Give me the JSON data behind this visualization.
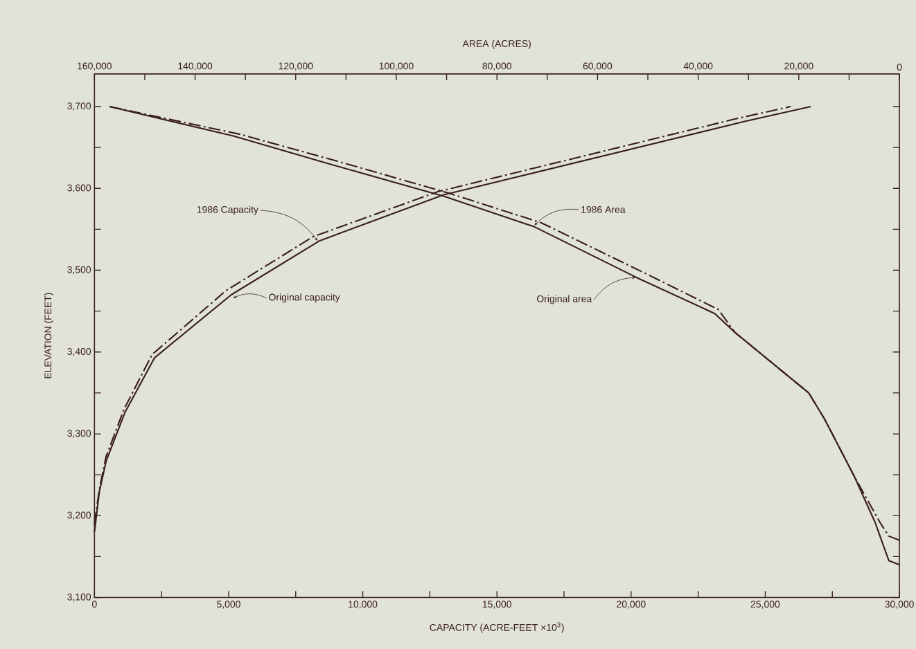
{
  "chart_data": {
    "type": "line",
    "xlabel": "CAPACITY (ACRE-FEET ×10$^{3}$)",
    "x2label": "AREA (ACRES)",
    "ylabel": "ELEVATION (FEET)",
    "xlim": [
      0,
      30000
    ],
    "x2lim": [
      160000,
      0
    ],
    "ylim": [
      3100,
      3740
    ],
    "xticks": [
      {
        "value": 0,
        "label": "0"
      },
      {
        "value": 2500,
        "label": null
      },
      {
        "value": 5000,
        "label": "5,000"
      },
      {
        "value": 7500,
        "label": null
      },
      {
        "value": 10000,
        "label": "10,000"
      },
      {
        "value": 12500,
        "label": null
      },
      {
        "value": 15000,
        "label": "15,000"
      },
      {
        "value": 17500,
        "label": null
      },
      {
        "value": 20000,
        "label": "20,000"
      },
      {
        "value": 22500,
        "label": null
      },
      {
        "value": 25000,
        "label": "25,000"
      },
      {
        "value": 27500,
        "label": null
      },
      {
        "value": 30000,
        "label": "30,000"
      }
    ],
    "x2ticks": [
      {
        "value": 160000,
        "label": "160,000"
      },
      {
        "value": 150000,
        "label": null
      },
      {
        "value": 140000,
        "label": "140,000"
      },
      {
        "value": 130000,
        "label": null
      },
      {
        "value": 120000,
        "label": "120,000"
      },
      {
        "value": 110000,
        "label": null
      },
      {
        "value": 100000,
        "label": "100,000"
      },
      {
        "value": 90000,
        "label": null
      },
      {
        "value": 80000,
        "label": "80,000"
      },
      {
        "value": 70000,
        "label": null
      },
      {
        "value": 60000,
        "label": "60,000"
      },
      {
        "value": 50000,
        "label": null
      },
      {
        "value": 40000,
        "label": "40,000"
      },
      {
        "value": 30000,
        "label": null
      },
      {
        "value": 20000,
        "label": "20,000"
      },
      {
        "value": 10000,
        "label": null
      },
      {
        "value": 0,
        "label": "0"
      }
    ],
    "yticks": [
      {
        "value": 3100,
        "label": "3,100"
      },
      {
        "value": 3150,
        "label": null
      },
      {
        "value": 3200,
        "label": "3,200"
      },
      {
        "value": 3250,
        "label": null
      },
      {
        "value": 3300,
        "label": "3,300"
      },
      {
        "value": 3350,
        "label": null
      },
      {
        "value": 3400,
        "label": "3,400"
      },
      {
        "value": 3450,
        "label": null
      },
      {
        "value": 3500,
        "label": "3,500"
      },
      {
        "value": 3550,
        "label": null
      },
      {
        "value": 3600,
        "label": "3,600"
      },
      {
        "value": 3650,
        "label": null
      },
      {
        "value": 3700,
        "label": "3,700"
      }
    ],
    "series": [
      {
        "color": "#3a1f1c",
        "line_style": "solid",
        "x": [
          0,
          180,
          438,
          1133,
          2240,
          5100,
          8395,
          13000,
          24257,
          26700
        ],
        "values": [
          3180,
          3229,
          3267,
          3326,
          3393,
          3470,
          3536,
          3592,
          3682,
          3700
        ]
      },
      {
        "color": "#3a1f1c",
        "line_style": "dashdot",
        "x": [
          0,
          180,
          430,
          1100,
          2150,
          4900,
          8150,
          12800,
          23900,
          25950
        ],
        "values": [
          3190,
          3232,
          3272,
          3330,
          3397,
          3475,
          3541,
          3596,
          3685,
          3700
        ]
      },
      {
        "color": "#3a1f1c",
        "line_style": "solid",
        "axis": "x2",
        "x": [
          157000,
          132400,
          112800,
          90400,
          72540,
          52220,
          36700,
          32700,
          18030,
          14870,
          8970,
          4850,
          2100,
          0
        ],
        "values": [
          3700,
          3664,
          3629,
          3590,
          3553,
          3491,
          3447,
          3424,
          3350,
          3318,
          3248,
          3192,
          3145,
          3140
        ]
      },
      {
        "color": "#3a1f1c",
        "line_style": "dashdot",
        "axis": "x2",
        "x": [
          157000,
          131000,
          111000,
          89500,
          71200,
          50800,
          36000,
          32700,
          18030,
          14870,
          8970,
          3890,
          2100,
          0
        ],
        "values": [
          3700,
          3666,
          3632,
          3594,
          3558,
          3497,
          3452,
          3424,
          3350,
          3318,
          3248,
          3192,
          3175,
          3170
        ]
      }
    ],
    "annotations": [
      {
        "text": "1986 Capacity",
        "x": 8316,
        "y": 3536
      },
      {
        "text": "Original capacity",
        "x": 5176,
        "y": 3466
      },
      {
        "text": "1986 Area",
        "x": 16400,
        "y": 3555
      },
      {
        "text": "Original area",
        "x": 20160,
        "y": 3491
      }
    ]
  }
}
